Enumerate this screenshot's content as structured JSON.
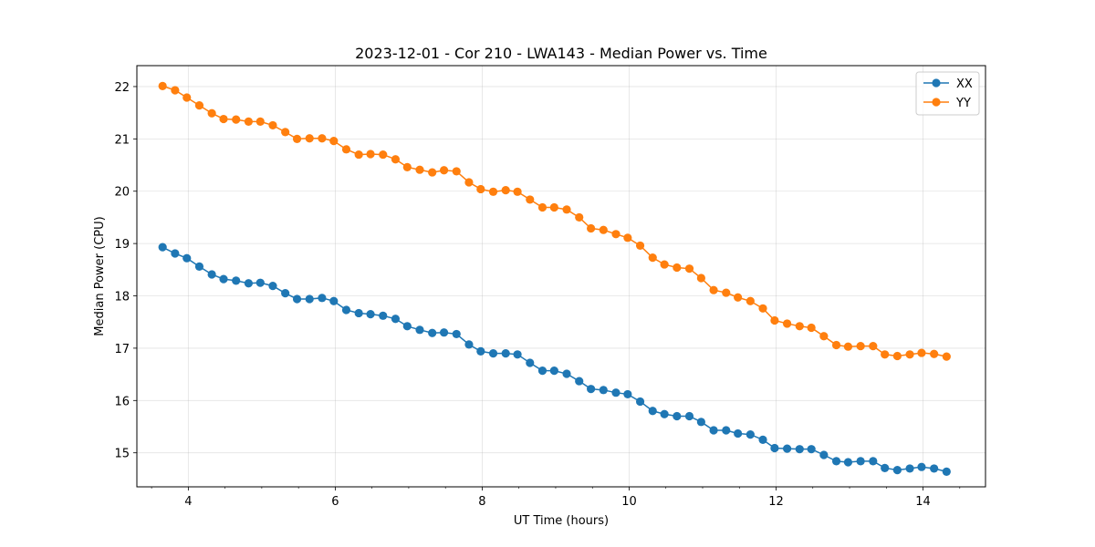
{
  "chart_data": {
    "type": "line",
    "title": "2023-12-01 - Cor 210 - LWA143 - Median Power vs. Time",
    "xlabel": "UT Time (hours)",
    "ylabel": "Median Power (CPU)",
    "xlim": [
      3.3,
      14.85
    ],
    "ylim": [
      14.35,
      22.4
    ],
    "xticks": [
      4,
      6,
      8,
      10,
      12,
      14
    ],
    "yticks": [
      15,
      16,
      17,
      18,
      19,
      20,
      21,
      22
    ],
    "grid": true,
    "legend_position": "top-right",
    "x": [
      3.65,
      3.82,
      3.98,
      4.15,
      4.32,
      4.48,
      4.65,
      4.82,
      4.98,
      5.15,
      5.32,
      5.48,
      5.65,
      5.82,
      5.98,
      6.15,
      6.32,
      6.48,
      6.65,
      6.82,
      6.98,
      7.15,
      7.32,
      7.48,
      7.65,
      7.82,
      7.98,
      8.15,
      8.32,
      8.48,
      8.65,
      8.82,
      8.98,
      9.15,
      9.32,
      9.48,
      9.65,
      9.82,
      9.98,
      10.15,
      10.32,
      10.48,
      10.65,
      10.82,
      10.98,
      11.15,
      11.32,
      11.48,
      11.65,
      11.82,
      11.98,
      12.15,
      12.32,
      12.48,
      12.65,
      12.82,
      12.98,
      13.15,
      13.32,
      13.48,
      13.65,
      13.82,
      13.98,
      14.15,
      14.32
    ],
    "series": [
      {
        "name": "XX",
        "color": "#1f77b4",
        "values": [
          18.93,
          18.81,
          18.72,
          18.56,
          18.41,
          18.32,
          18.29,
          18.24,
          18.25,
          18.19,
          18.05,
          17.94,
          17.94,
          17.96,
          17.9,
          17.73,
          17.67,
          17.65,
          17.62,
          17.56,
          17.42,
          17.35,
          17.29,
          17.3,
          17.27,
          17.07,
          16.94,
          16.9,
          16.9,
          16.88,
          16.72,
          16.57,
          16.57,
          16.51,
          16.37,
          16.22,
          16.2,
          16.15,
          16.12,
          15.98,
          15.8,
          15.74,
          15.7,
          15.7,
          15.59,
          15.43,
          15.43,
          15.37,
          15.35,
          15.25,
          15.09,
          15.08,
          15.07,
          15.07,
          14.96,
          14.84,
          14.82,
          14.84,
          14.84,
          14.71,
          14.67,
          14.7,
          14.73,
          14.7,
          14.64
        ]
      },
      {
        "name": "YY",
        "color": "#ff7f0e",
        "values": [
          22.01,
          21.93,
          21.79,
          21.64,
          21.49,
          21.38,
          21.37,
          21.33,
          21.33,
          21.26,
          21.13,
          21.0,
          21.01,
          21.01,
          20.96,
          20.8,
          20.7,
          20.71,
          20.7,
          20.61,
          20.46,
          20.41,
          20.36,
          20.4,
          20.38,
          20.17,
          20.04,
          19.99,
          20.02,
          19.99,
          19.84,
          19.69,
          19.69,
          19.65,
          19.5,
          19.29,
          19.26,
          19.18,
          19.11,
          18.96,
          18.73,
          18.6,
          18.54,
          18.52,
          18.34,
          18.11,
          18.06,
          17.97,
          17.9,
          17.76,
          17.53,
          17.47,
          17.42,
          17.39,
          17.23,
          17.06,
          17.03,
          17.04,
          17.04,
          16.88,
          16.85,
          16.88,
          16.91,
          16.89,
          16.84
        ]
      }
    ]
  }
}
